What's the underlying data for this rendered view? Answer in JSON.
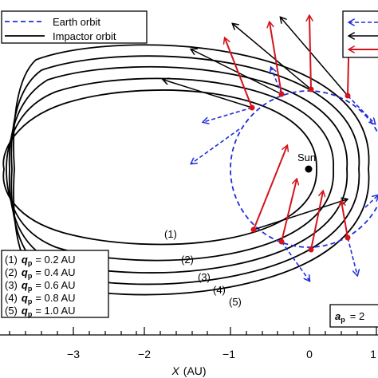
{
  "legend_top": {
    "earth_label": "Earth orbit",
    "impactor_label": "Impactor orbit",
    "earth_color": "#1f2fd6",
    "impactor_color": "#000000"
  },
  "sun_label": "Sun",
  "arrow_colors": {
    "black": "#000000",
    "red": "#d4141c",
    "blue": "#1f2fd6"
  },
  "orbit_labels": [
    "(1)",
    "(2)",
    "(3)",
    "(4)",
    "(5)"
  ],
  "legend_bottom": [
    {
      "num": "(1)",
      "sym": "q",
      "sub": "p",
      "val": "= 0.2 AU"
    },
    {
      "num": "(2)",
      "sym": "q",
      "sub": "p",
      "val": "= 0.4 AU"
    },
    {
      "num": "(3)",
      "sym": "q",
      "sub": "p",
      "val": "= 0.6 AU"
    },
    {
      "num": "(4)",
      "sym": "q",
      "sub": "p",
      "val": "= 0.8 AU"
    },
    {
      "num": "(5)",
      "sym": "q",
      "sub": "p",
      "val": "= 1.0 AU"
    }
  ],
  "ap_label": {
    "sym": "a",
    "sub": "p",
    "val": "= 2"
  },
  "axis": {
    "xlabel_sym": "X",
    "xlabel_unit": "(AU)",
    "ticks": [
      "−3",
      "−2",
      "−1",
      "0",
      "1"
    ]
  }
}
